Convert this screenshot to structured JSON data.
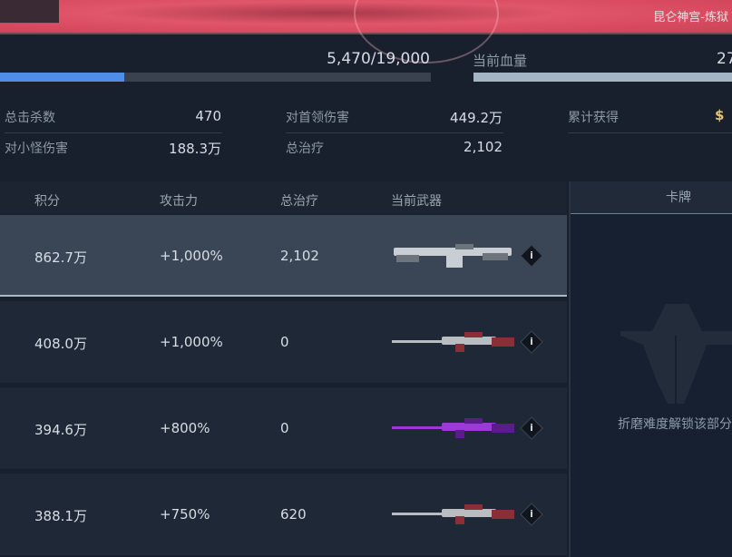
{
  "banner": {
    "location": "昆仑神宫-炼狱"
  },
  "progress": {
    "text": "5,470/19,000",
    "current": 5470,
    "max": 19000,
    "color": "#4f8ee6"
  },
  "hp": {
    "label": "当前血量",
    "value": "27"
  },
  "stats": [
    {
      "label": "总击杀数",
      "value": "470"
    },
    {
      "label": "对小怪伤害",
      "value": "188.3万"
    },
    {
      "label": "对首领伤害",
      "value": "449.2万"
    },
    {
      "label": "总治疗",
      "value": "2,102"
    },
    {
      "label": "累计获得",
      "value": "$"
    }
  ],
  "table": {
    "headers": [
      "积分",
      "攻击力",
      "总治疗",
      "当前武器"
    ],
    "rows": [
      {
        "score": "862.7万",
        "attack": "+1,000%",
        "heal": "2,102",
        "weapon": "white-rifle",
        "selected": true
      },
      {
        "score": "408.0万",
        "attack": "+1,000%",
        "heal": "0",
        "weapon": "red-sniper-rifle"
      },
      {
        "score": "394.6万",
        "attack": "+800%",
        "heal": "0",
        "weapon": "purple-sniper-rifle"
      },
      {
        "score": "388.1万",
        "attack": "+750%",
        "heal": "620",
        "weapon": "red-sniper-rifle"
      }
    ],
    "info_label": "i"
  },
  "cards": {
    "header": "卡牌",
    "locked_text": "折磨难度解锁该部分"
  }
}
